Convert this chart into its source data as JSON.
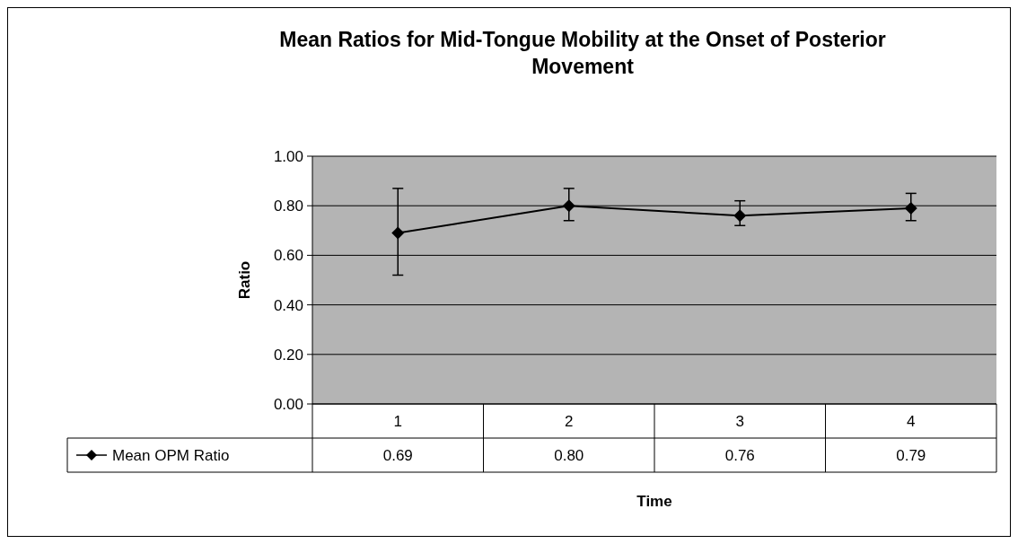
{
  "chart_data": {
    "type": "line",
    "title": "Mean Ratios for Mid-Tongue Mobility at the Onset of Posterior Movement",
    "xlabel": "Time",
    "ylabel": "Ratio",
    "categories": [
      "1",
      "2",
      "3",
      "4"
    ],
    "series": [
      {
        "name": "Mean OPM Ratio",
        "color": "#000000",
        "values": [
          0.69,
          0.8,
          0.76,
          0.79
        ],
        "value_labels": [
          "0.69",
          "0.80",
          "0.76",
          "0.79"
        ],
        "errors": [
          [
            0.52,
            0.87
          ],
          [
            0.74,
            0.87
          ],
          [
            0.72,
            0.82
          ],
          [
            0.74,
            0.85
          ]
        ]
      }
    ],
    "ylim": [
      0,
      1
    ],
    "yticks": [
      {
        "value": 0,
        "label": "0.00"
      },
      {
        "value": 0.2,
        "label": "0.20"
      },
      {
        "value": 0.4,
        "label": "0.40"
      },
      {
        "value": 0.6,
        "label": "0.60"
      },
      {
        "value": 0.8,
        "label": "0.80"
      },
      {
        "value": 1,
        "label": "1.00"
      }
    ],
    "grid": "y",
    "marker": "diamond",
    "line_style": "solid",
    "legend": "bottom left"
  }
}
